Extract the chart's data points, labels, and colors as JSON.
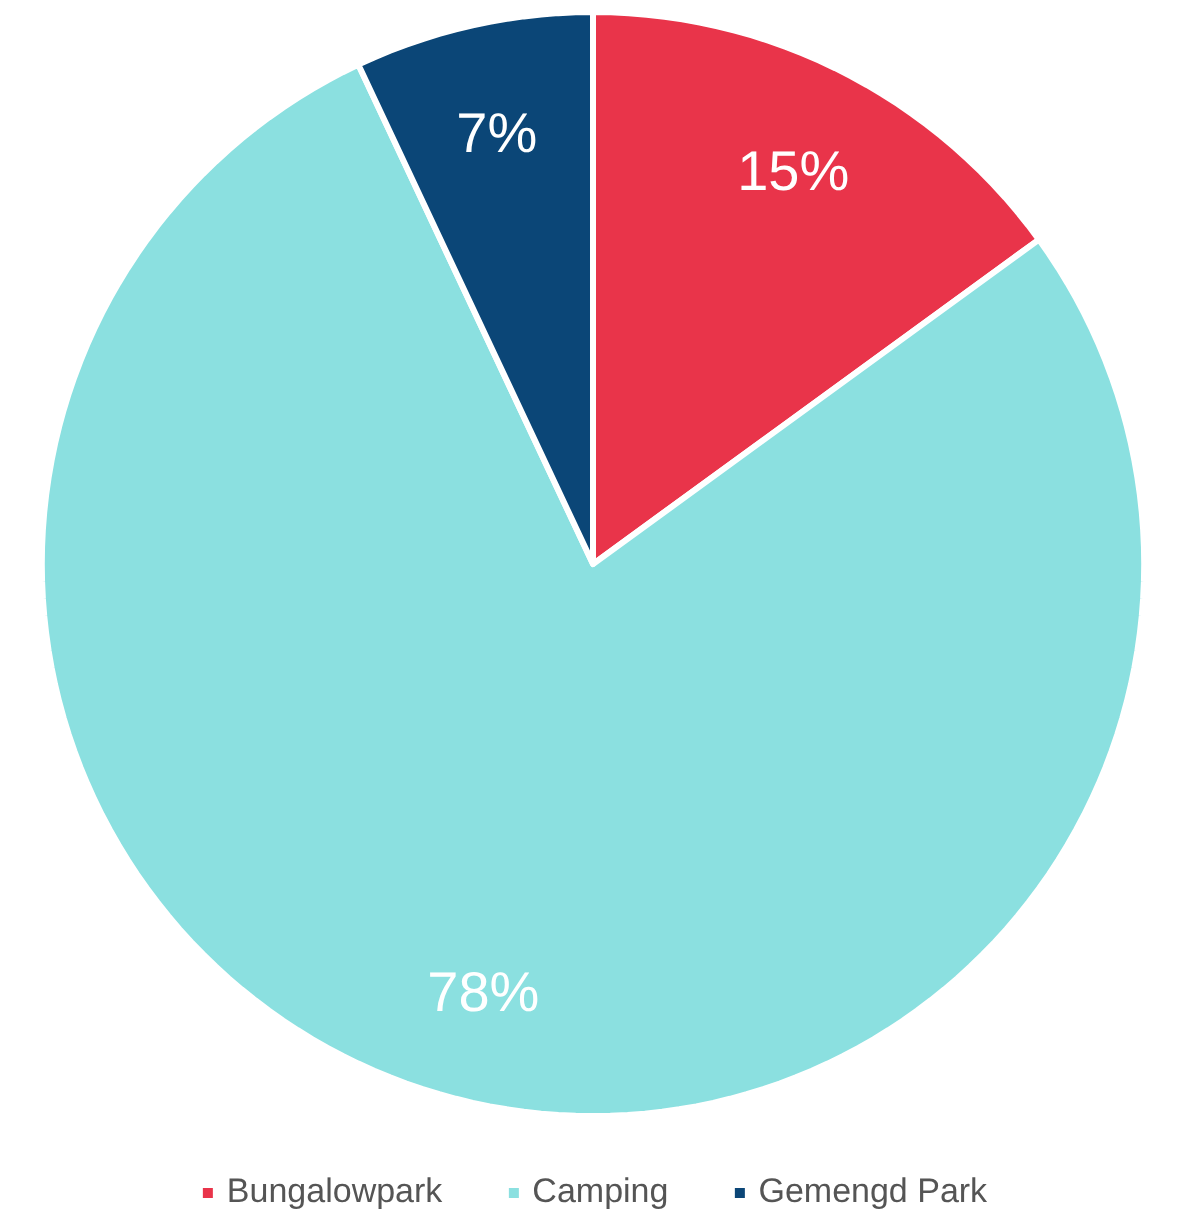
{
  "chart_data": {
    "type": "pie",
    "categories": [
      "Bungalowpark",
      "Camping",
      "Gemengd Park"
    ],
    "values": [
      15,
      78,
      7
    ],
    "colors": [
      "#e9344a",
      "#8be0e0",
      "#0b4677"
    ],
    "value_labels": [
      "15%",
      "78%",
      "7%"
    ],
    "legend": "bottom"
  }
}
